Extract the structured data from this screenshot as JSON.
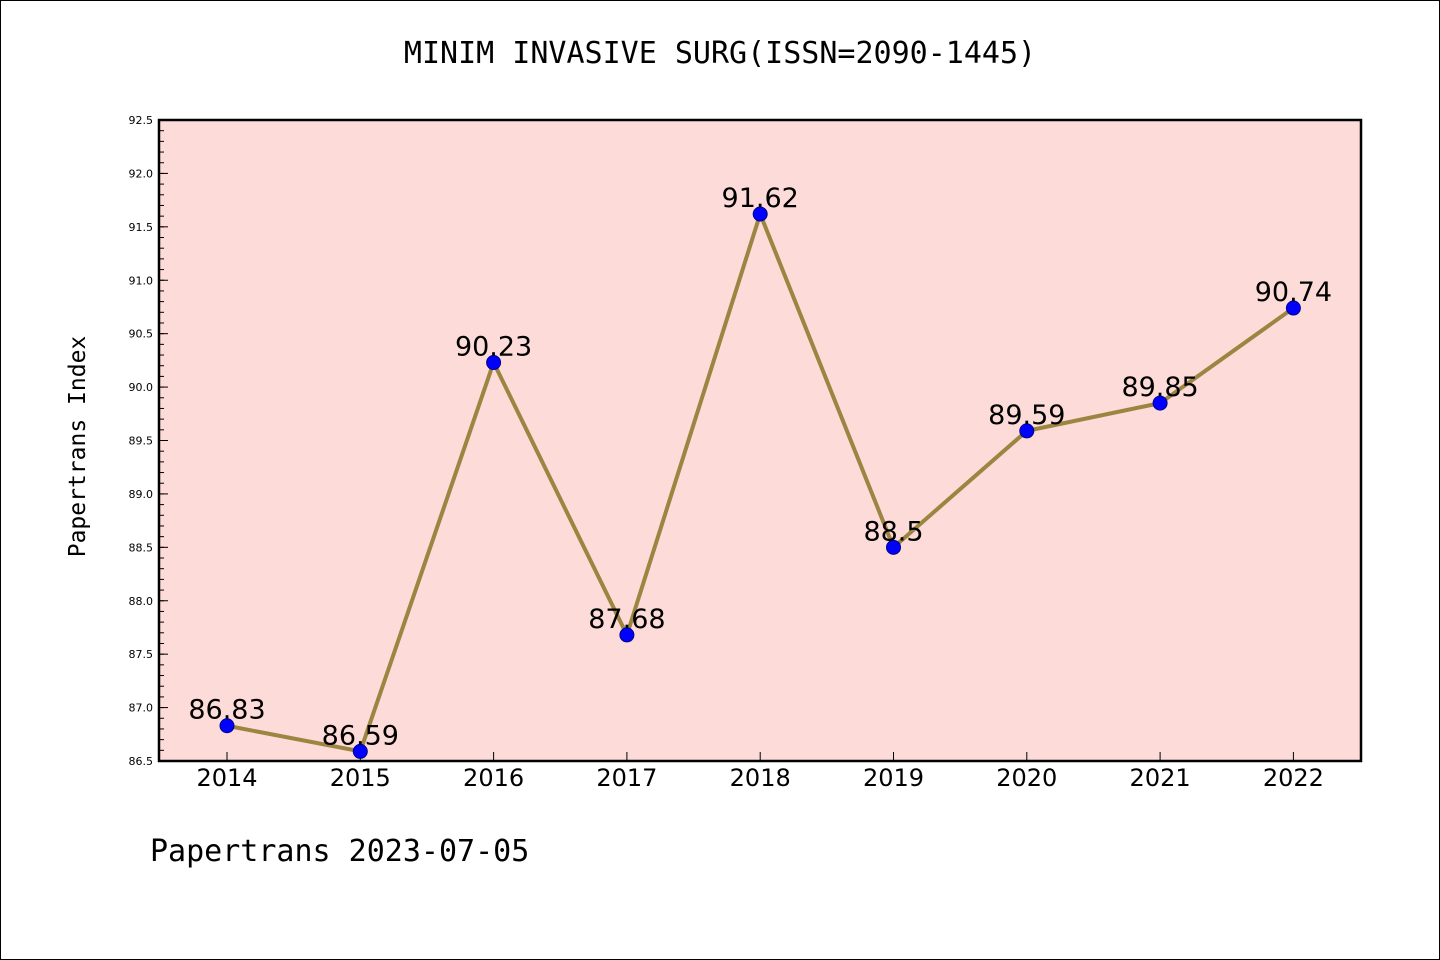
{
  "header": {
    "title": "MINIM INVASIVE SURG(ISSN=2090-1445)"
  },
  "footer": {
    "text": "Papertrans 2023-07-05"
  },
  "colors": {
    "plot_background": "#fddbd9",
    "line": "#9b8540",
    "marker_fill": "#0000ff",
    "marker_edge": "#00008b",
    "axis": "#000000"
  },
  "chart_data": {
    "type": "line",
    "title": "MINIM INVASIVE SURG(ISSN=2090-1445)",
    "xlabel": "",
    "ylabel": "Papertrans Index",
    "categories": [
      "2014",
      "2015",
      "2016",
      "2017",
      "2018",
      "2019",
      "2020",
      "2021",
      "2022"
    ],
    "series": [
      {
        "values": [
          86.83,
          86.59,
          90.23,
          87.68,
          91.62,
          88.5,
          89.59,
          89.85,
          90.74
        ],
        "labels": [
          "86.83",
          "86.59",
          "90.23",
          "87.68",
          "91.62",
          "88.5",
          "89.59",
          "89.85",
          "90.74"
        ]
      }
    ],
    "ylim": [
      86.5,
      92.5
    ],
    "yticks": [
      "86.5",
      "87.0",
      "87.5",
      "88.0",
      "88.5",
      "89.0",
      "89.5",
      "90.0",
      "90.5",
      "91.0",
      "91.5",
      "92.0",
      "92.5"
    ],
    "grid": false,
    "legend": "none"
  }
}
